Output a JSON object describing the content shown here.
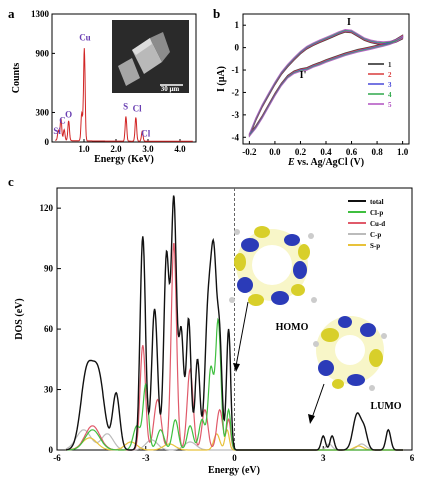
{
  "panels": {
    "a": "a",
    "b": "b",
    "c": "c"
  },
  "chart_data": [
    {
      "type": "bar",
      "panel": "a",
      "title": "",
      "xlabel": "Energy (KeV)",
      "ylabel": "Counts",
      "xlim": [
        0,
        4.5
      ],
      "ylim": [
        0,
        1300
      ],
      "xticks": [
        "1.0",
        "2.0",
        "3.0",
        "4.0"
      ],
      "yticks": [
        "0",
        "300",
        "900",
        "1300"
      ],
      "inset_label": "30 μm",
      "x": [
        0.2,
        0.28,
        0.38,
        0.52,
        0.93,
        1.01,
        2.31,
        2.62,
        2.82
      ],
      "values": [
        100,
        220,
        110,
        200,
        280,
        940,
        250,
        240,
        100
      ],
      "peak_labels": [
        {
          "text": "Si",
          "x": 0.16,
          "y": 80
        },
        {
          "text": "C",
          "x": 0.33,
          "y": 190
        },
        {
          "text": "O",
          "x": 0.52,
          "y": 250
        },
        {
          "text": "Cu",
          "x": 1.03,
          "y": 1030
        },
        {
          "text": "S",
          "x": 2.3,
          "y": 330
        },
        {
          "text": "Cl",
          "x": 2.66,
          "y": 310
        },
        {
          "text": "Cl",
          "x": 2.93,
          "y": 55
        }
      ]
    },
    {
      "type": "line",
      "panel": "b",
      "title": "",
      "xlabel": "E vs. Ag/AgCl (V)",
      "ylabel": "I (μA)",
      "xlim": [
        -0.25,
        1.05
      ],
      "ylim": [
        -4.3,
        1.5
      ],
      "xticks": [
        "-0.2",
        "0.0",
        "0.2",
        "0.4",
        "0.6",
        "0.8",
        "1.0"
      ],
      "yticks": [
        "1",
        "0",
        "-1",
        "-2",
        "-3",
        "-4"
      ],
      "annotations": [
        {
          "text": "I",
          "x": 0.58,
          "y": 1.0
        },
        {
          "text": "I'",
          "x": 0.22,
          "y": -1.35
        }
      ],
      "legend_position": "right",
      "series": [
        {
          "name": "1",
          "color": "#222222"
        },
        {
          "name": "2",
          "color": "#d93a3a"
        },
        {
          "name": "3",
          "color": "#4848d8"
        },
        {
          "name": "4",
          "color": "#2fa84a"
        },
        {
          "name": "5",
          "color": "#b050c0"
        }
      ],
      "cycle_x": [
        -0.2,
        -0.15,
        -0.1,
        -0.05,
        0.0,
        0.05,
        0.1,
        0.15,
        0.2,
        0.25,
        0.3,
        0.35,
        0.4,
        0.45,
        0.5,
        0.55,
        0.6,
        0.65,
        0.7,
        0.75,
        0.8,
        0.85,
        0.9,
        0.95,
        1.0
      ],
      "forward_y": [
        -3.9,
        -3.2,
        -2.6,
        -2.1,
        -1.6,
        -1.15,
        -0.8,
        -0.5,
        -0.22,
        0.0,
        0.15,
        0.28,
        0.4,
        0.52,
        0.65,
        0.75,
        0.72,
        0.55,
        0.38,
        0.28,
        0.22,
        0.2,
        0.22,
        0.3,
        0.45
      ],
      "reverse_y": [
        -3.9,
        -3.55,
        -3.1,
        -2.6,
        -2.1,
        -1.65,
        -1.3,
        -1.1,
        -1.0,
        -0.95,
        -0.82,
        -0.72,
        -0.6,
        -0.5,
        -0.4,
        -0.3,
        -0.22,
        -0.14,
        -0.08,
        -0.02,
        0.05,
        0.12,
        0.2,
        0.32,
        0.5
      ]
    },
    {
      "type": "line",
      "panel": "c",
      "title": "",
      "xlabel": "Energy (eV)",
      "ylabel": "DOS (eV)",
      "xlim": [
        -6,
        6
      ],
      "ylim": [
        0,
        130
      ],
      "xticks": [
        "-6",
        "-3",
        "0",
        "3",
        "6"
      ],
      "yticks": [
        "0",
        "30",
        "60",
        "90",
        "120"
      ],
      "fermi_level": 0,
      "legend_position": "top-right",
      "homo_label": "HOMO",
      "lumo_label": "LUMO",
      "series": [
        {
          "name": "total",
          "color": "#111111",
          "peaks": [
            [
              -5.0,
              37,
              0.2
            ],
            [
              -4.6,
              36,
              0.2
            ],
            [
              -4.0,
              28,
              0.12
            ],
            [
              -3.1,
              106,
              0.09
            ],
            [
              -2.7,
              70,
              0.1
            ],
            [
              -2.3,
              96,
              0.09
            ],
            [
              -2.05,
              124,
              0.09
            ],
            [
              -1.8,
              58,
              0.08
            ],
            [
              -1.55,
              65,
              0.08
            ],
            [
              -1.25,
              45,
              0.08
            ],
            [
              -0.9,
              65,
              0.1
            ],
            [
              -0.7,
              92,
              0.1
            ],
            [
              -0.5,
              50,
              0.08
            ],
            [
              -0.2,
              60,
              0.07
            ],
            [
              3.0,
              7,
              0.07
            ],
            [
              3.3,
              7,
              0.07
            ],
            [
              4.15,
              18,
              0.14
            ],
            [
              4.4,
              8,
              0.1
            ],
            [
              5.2,
              10,
              0.08
            ]
          ]
        },
        {
          "name": "Cl-p",
          "color": "#3fbf3f",
          "peaks": [
            [
              -4.8,
              10,
              0.25
            ],
            [
              -3.3,
              12,
              0.12
            ],
            [
              -3.0,
              32,
              0.09
            ],
            [
              -2.5,
              10,
              0.12
            ],
            [
              -2.0,
              15,
              0.1
            ],
            [
              -1.5,
              12,
              0.1
            ],
            [
              -1.1,
              15,
              0.1
            ],
            [
              -0.8,
              40,
              0.09
            ],
            [
              -0.55,
              64,
              0.09
            ],
            [
              -0.2,
              20,
              0.07
            ]
          ]
        },
        {
          "name": "Cu-d",
          "color": "#e05a6a",
          "peaks": [
            [
              -4.8,
              12,
              0.25
            ],
            [
              -3.1,
              52,
              0.09
            ],
            [
              -2.6,
              25,
              0.12
            ],
            [
              -2.05,
              103,
              0.09
            ],
            [
              -1.5,
              40,
              0.1
            ],
            [
              -1.0,
              20,
              0.1
            ],
            [
              -0.5,
              20,
              0.1
            ],
            [
              -0.2,
              15,
              0.07
            ]
          ]
        },
        {
          "name": "C-p",
          "color": "#bbbbbb",
          "peaks": [
            [
              -5.1,
              10,
              0.25
            ],
            [
              -4.3,
              8,
              0.2
            ],
            [
              -2.8,
              5,
              0.2
            ],
            [
              -1.5,
              4,
              0.2
            ],
            [
              3.2,
              3,
              0.1
            ],
            [
              4.3,
              3,
              0.15
            ]
          ]
        },
        {
          "name": "S-p",
          "color": "#e8c23a",
          "peaks": [
            [
              -4.9,
              6,
              0.25
            ],
            [
              -3.5,
              4,
              0.2
            ],
            [
              -2.2,
              3,
              0.2
            ],
            [
              -0.6,
              8,
              0.1
            ],
            [
              -0.25,
              10,
              0.07
            ],
            [
              4.2,
              2,
              0.15
            ]
          ]
        }
      ]
    }
  ]
}
